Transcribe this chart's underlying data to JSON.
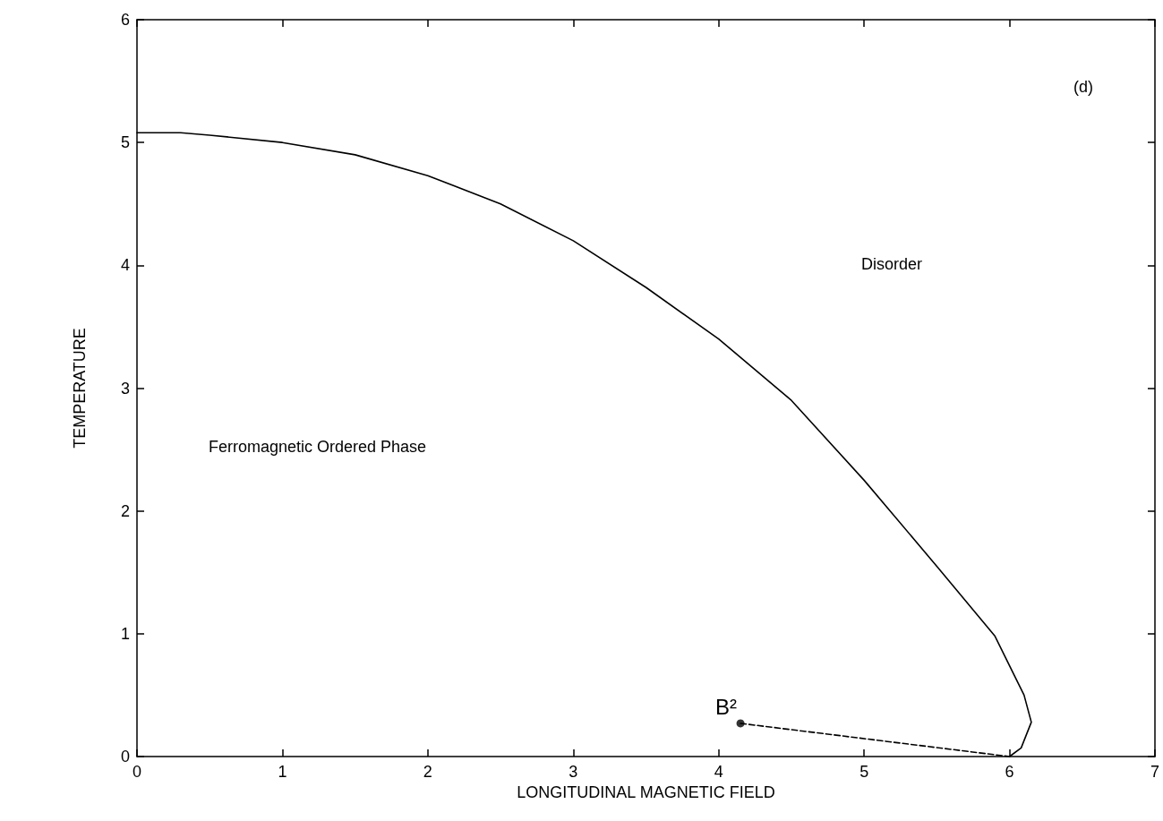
{
  "chart_data": {
    "type": "line",
    "xlabel": "LONGITUDINAL MAGNETIC FIELD",
    "ylabel": "TEMPERATURE",
    "xlim": [
      0,
      7
    ],
    "xticks": [
      0,
      1,
      2,
      3,
      4,
      5,
      6,
      7
    ],
    "ylim": [
      0,
      6
    ],
    "yticks": [
      0,
      1,
      2,
      3,
      4,
      5,
      6
    ],
    "grid": false,
    "series": [
      {
        "color": "#000000",
        "marker": "none",
        "line_style": "solid",
        "x": [
          0,
          0.3,
          0.5,
          1,
          1.5,
          2,
          2.5,
          3,
          3.5,
          4,
          4.5,
          5,
          5.5,
          5.9,
          6.1,
          6.15,
          6.08,
          6.0
        ],
        "values": [
          5.08,
          5.08,
          5.06,
          5.0,
          4.9,
          4.73,
          4.5,
          4.2,
          3.82,
          3.4,
          2.9,
          2.25,
          1.55,
          0.98,
          0.5,
          0.28,
          0.07,
          0
        ]
      },
      {
        "type": "line",
        "color": "#000000",
        "marker": "none",
        "line_style": "dashed",
        "x": [
          4.15,
          6.0
        ],
        "values": [
          0.27,
          0
        ]
      },
      {
        "type": "scatter",
        "color": "#000000",
        "marker": "circle",
        "x": [
          4.15
        ],
        "values": [
          0.27
        ]
      }
    ],
    "annotations": [
      "(d)",
      "Disorder",
      "Ferromagnetic Ordered Phase",
      {
        "text": "B²",
        "x": 4.15,
        "y": 0.27
      }
    ]
  }
}
